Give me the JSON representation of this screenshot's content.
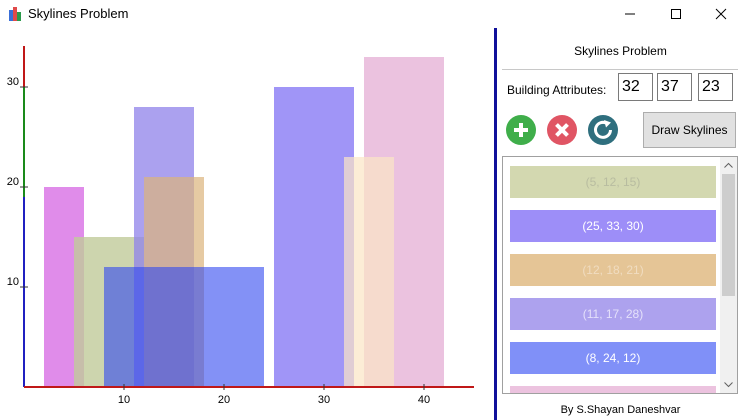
{
  "window": {
    "title": "Skylines Problem",
    "icon": "city-buildings-icon",
    "minimize_icon": "minimize-icon",
    "maximize_icon": "maximize-icon",
    "close_icon": "close-icon"
  },
  "panel": {
    "title": "Skylines Problem",
    "attributes_label": "Building Attributes:",
    "attr_values": [
      "32",
      "37",
      "23"
    ],
    "add_icon": "plus-circle-icon",
    "remove_icon": "x-circle-icon",
    "reset_icon": "refresh-circle-icon",
    "draw_button": "Draw Skylines",
    "buildings": [
      {
        "label": "(5, 12, 15)",
        "color": "#d3d8b0",
        "text_color": "#b8bca0"
      },
      {
        "label": "(25, 33, 30)",
        "color": "#9d8ef8",
        "text_color": "#ffffff"
      },
      {
        "label": "(12, 18, 21)",
        "color": "#e5c596",
        "text_color": "#f0dcc0"
      },
      {
        "label": "(11, 17, 28)",
        "color": "#ada2ee",
        "text_color": "#e4e0fa"
      },
      {
        "label": "(8, 24, 12)",
        "color": "#8090f8",
        "text_color": "#ffffff"
      },
      {
        "label": "",
        "color": "#ecc3df",
        "text_color": "#ffffff"
      }
    ],
    "footer": "By S.Shayan Daneshvar"
  },
  "chart_data": {
    "type": "bar",
    "x_ticks": [
      10,
      20,
      30,
      40
    ],
    "y_ticks": [
      10,
      20,
      30
    ],
    "xlim": [
      0,
      45
    ],
    "ylim": [
      0,
      34
    ],
    "buildings": [
      {
        "left": 2,
        "right": 6,
        "height": 20,
        "color": "#cf4fdf",
        "opacity": 0.65
      },
      {
        "left": 5,
        "right": 12,
        "height": 15,
        "color": "#c1ca9a",
        "opacity": 0.8
      },
      {
        "left": 11,
        "right": 17,
        "height": 28,
        "color": "#8f82ea",
        "opacity": 0.75
      },
      {
        "left": 12,
        "right": 18,
        "height": 21,
        "color": "#dcb47c",
        "opacity": 0.7
      },
      {
        "left": 8,
        "right": 24,
        "height": 12,
        "color": "#3048f0",
        "opacity": 0.6
      },
      {
        "left": 25,
        "right": 33,
        "height": 30,
        "color": "#7868f4",
        "opacity": 0.7
      },
      {
        "left": 34,
        "right": 42,
        "height": 33,
        "color": "#e2a8d2",
        "opacity": 0.7
      },
      {
        "left": 32,
        "right": 37,
        "height": 23,
        "color": "#fbe6c4",
        "opacity": 0.7
      }
    ]
  }
}
